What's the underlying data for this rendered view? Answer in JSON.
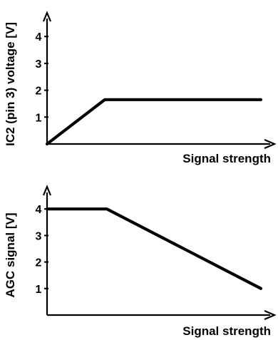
{
  "chart_data": [
    {
      "type": "line",
      "xlabel": "Signal strength",
      "ylabel": "IC2 (pin 3) voltage [V]",
      "yticks": [
        "1",
        "2",
        "3",
        "4"
      ],
      "ylim": [
        0,
        4.6
      ],
      "xlim": [
        0,
        10
      ],
      "series": [
        {
          "x": [
            0,
            2.7,
            10
          ],
          "y": [
            0,
            1.65,
            1.65
          ]
        }
      ]
    },
    {
      "type": "line",
      "xlabel": "Signal strength",
      "ylabel": "AGC signal [V]",
      "yticks": [
        "1",
        "2",
        "3",
        "4"
      ],
      "ylim": [
        0,
        4.7
      ],
      "xlim": [
        0,
        10
      ],
      "series": [
        {
          "x": [
            0,
            2.8,
            10
          ],
          "y": [
            4.0,
            4.0,
            1.0
          ]
        }
      ]
    }
  ]
}
